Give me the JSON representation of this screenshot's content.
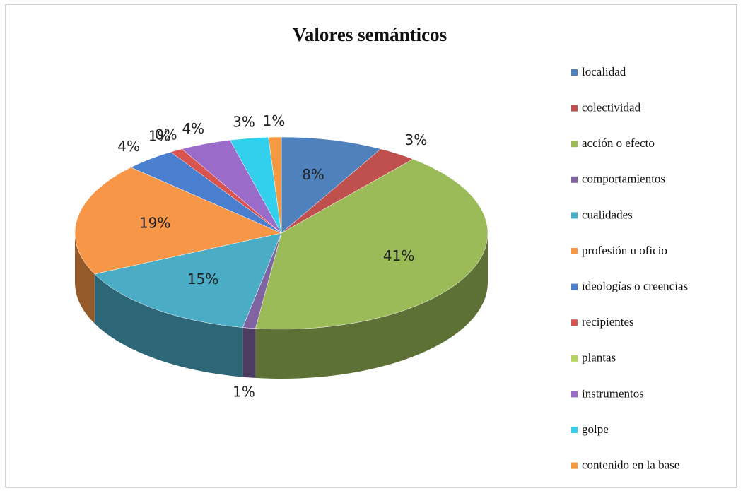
{
  "chart_data": {
    "type": "pie",
    "title": "Valores semánticos",
    "categories": [
      "localidad",
      "colectividad",
      "acción o efecto",
      "comportamientos",
      "cualidades",
      "profesión u oficio",
      "ideologías o creencias",
      "recipientes",
      "plantas",
      "instrumentos",
      "golpe",
      "contenido en la base"
    ],
    "values": [
      8,
      3,
      41,
      1,
      15,
      19,
      4,
      1,
      0,
      4,
      3,
      1
    ],
    "value_labels": [
      "8%",
      "3%",
      "41%",
      "1%",
      "15%",
      "19%",
      "4%",
      "1%",
      "0%",
      "4%",
      "3%",
      "1%"
    ],
    "colors": [
      "#4f81bd",
      "#c0504d",
      "#9bbb59",
      "#8064a2",
      "#4bacc6",
      "#f79646",
      "#4a7fd0",
      "#d9534f",
      "#b5d65e",
      "#9b6bc9",
      "#33d0ee",
      "#f59a42"
    ],
    "legend": "right"
  }
}
